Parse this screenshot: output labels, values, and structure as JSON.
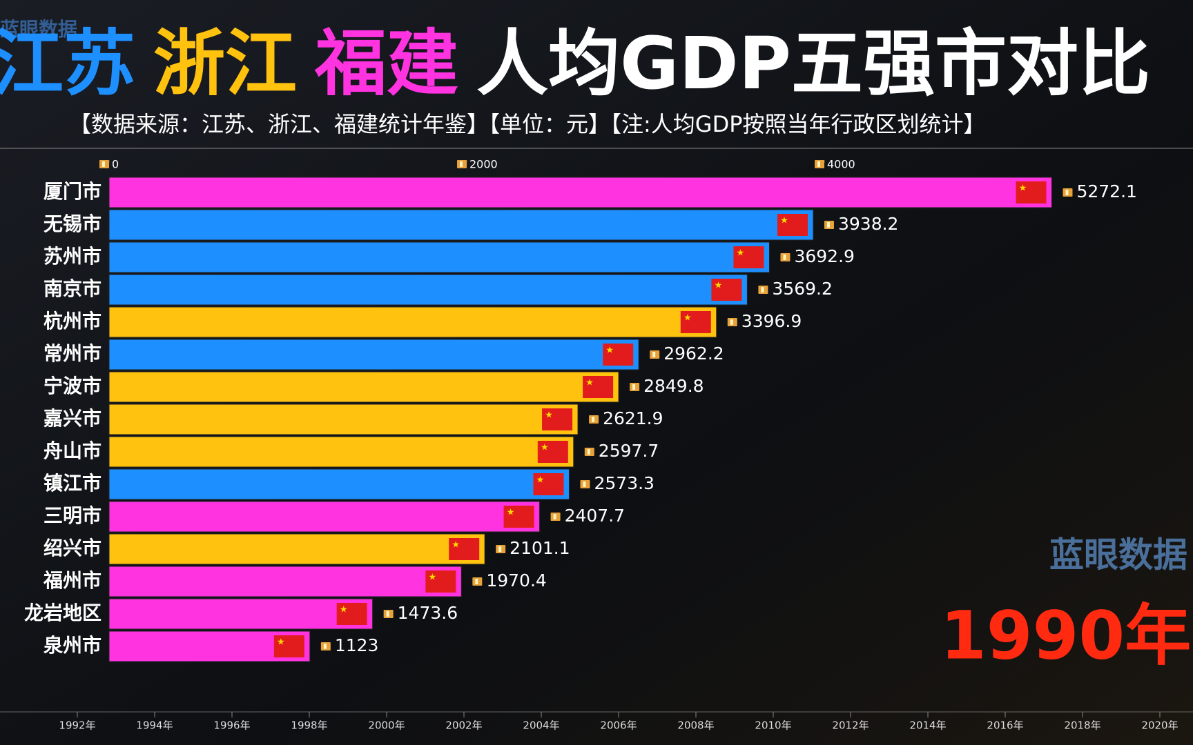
{
  "chart_data": {
    "type": "bar",
    "title_parts": [
      {
        "text": "江苏",
        "color": "#1e8fff"
      },
      {
        "text": "浙江",
        "color": "#ffc20e"
      },
      {
        "text": "福建",
        "color": "#ff33e0"
      },
      {
        "text": "人均GDP五强市对比",
        "color": "#ffffff"
      }
    ],
    "subtitle": "【数据来源：江苏、浙江、福建统计年鉴】【单位：元】【注:人均GDP按照当年行政区划统计】",
    "watermark": "蓝眼数据",
    "current_year": "1990年",
    "categories": [
      "厦门市",
      "无锡市",
      "苏州市",
      "南京市",
      "杭州市",
      "常州市",
      "宁波市",
      "嘉兴市",
      "舟山市",
      "镇江市",
      "三明市",
      "绍兴市",
      "福州市",
      "龙岩地区",
      "泉州市"
    ],
    "values": [
      5272.1,
      3938.2,
      3692.9,
      3569.2,
      3396.9,
      2962.2,
      2849.8,
      2621.9,
      2597.7,
      2573.3,
      2407.7,
      2101.1,
      1970.4,
      1473.6,
      1123
    ],
    "colors": [
      "#ff33e0",
      "#1e8fff",
      "#1e8fff",
      "#1e8fff",
      "#ffc20e",
      "#1e8fff",
      "#ffc20e",
      "#ffc20e",
      "#ffc20e",
      "#1e8fff",
      "#ff33e0",
      "#ffc20e",
      "#ff33e0",
      "#ff33e0",
      "#ff33e0"
    ],
    "xlim": [
      0,
      6000
    ],
    "xticks": [
      0,
      2000,
      4000
    ],
    "timeline": {
      "xlim": [
        1990,
        2021
      ],
      "xticks": [
        {
          "value": 1992,
          "label": "1992年"
        },
        {
          "value": 1994,
          "label": "1994年"
        },
        {
          "value": 1996,
          "label": "1996年"
        },
        {
          "value": 1998,
          "label": "1998年"
        },
        {
          "value": 2000,
          "label": "2000年"
        },
        {
          "value": 2002,
          "label": "2002年"
        },
        {
          "value": 2004,
          "label": "2004年"
        },
        {
          "value": 2006,
          "label": "2006年"
        },
        {
          "value": 2008,
          "label": "2008年"
        },
        {
          "value": 2010,
          "label": "2010年"
        },
        {
          "value": 2012,
          "label": "2012年"
        },
        {
          "value": 2014,
          "label": "2014年"
        },
        {
          "value": 2016,
          "label": "2016年"
        },
        {
          "value": 2018,
          "label": "2018年"
        },
        {
          "value": 2020,
          "label": "2020年"
        }
      ]
    }
  }
}
